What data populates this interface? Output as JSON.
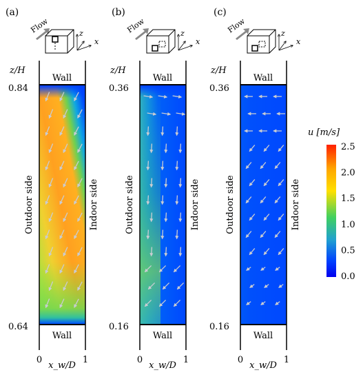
{
  "panels": [
    {
      "tag": "(a)",
      "flow_label": "Flow",
      "axis_label": "z/H",
      "top_value": "0.84",
      "bottom_value": "0.64",
      "top_wall": "Wall",
      "bottom_wall": "Wall",
      "outdoor_label": "Outdoor side",
      "indoor_label": "Indoor side",
      "x_label": "x_w/D",
      "x_min": "0",
      "x_max": "1",
      "probe_position": "upper-left"
    },
    {
      "tag": "(b)",
      "flow_label": "Flow",
      "axis_label": "z/H",
      "top_value": "0.36",
      "bottom_value": "0.16",
      "top_wall": "Wall",
      "bottom_wall": "Wall",
      "outdoor_label": "Outdoor side",
      "indoor_label": "Indoor side",
      "x_label": "x_w/D",
      "x_min": "0",
      "x_max": "1",
      "probe_position": "lower-left"
    },
    {
      "tag": "(c)",
      "flow_label": "Flow",
      "axis_label": "z/H",
      "top_value": "0.36",
      "bottom_value": "0.16",
      "top_wall": "Wall",
      "bottom_wall": "Wall",
      "outdoor_label": "Outdoor side",
      "indoor_label": "Indoor side",
      "x_label": "x_w/D",
      "x_min": "0",
      "x_max": "1",
      "probe_position": "lower-left"
    }
  ],
  "colorbar": {
    "title": "u [m/s]",
    "ticks": [
      "2.5",
      "2.0",
      "1.5",
      "1.0",
      "0.5",
      "0.0"
    ],
    "min": 0.0,
    "max": 2.5,
    "colors": [
      "#ff2000",
      "#ffa500",
      "#ffe000",
      "#40d060",
      "#20a0d0",
      "#0040ff",
      "#0000ee"
    ]
  },
  "fields": {
    "colors": {
      "blue": "#0048ff",
      "cyan": "#10a8e0",
      "green": "#50d060",
      "yellowgreen": "#b8e040",
      "yellow": "#ffd020",
      "orange": "#ff9418"
    },
    "arrow_color": "#c9ccd2"
  }
}
